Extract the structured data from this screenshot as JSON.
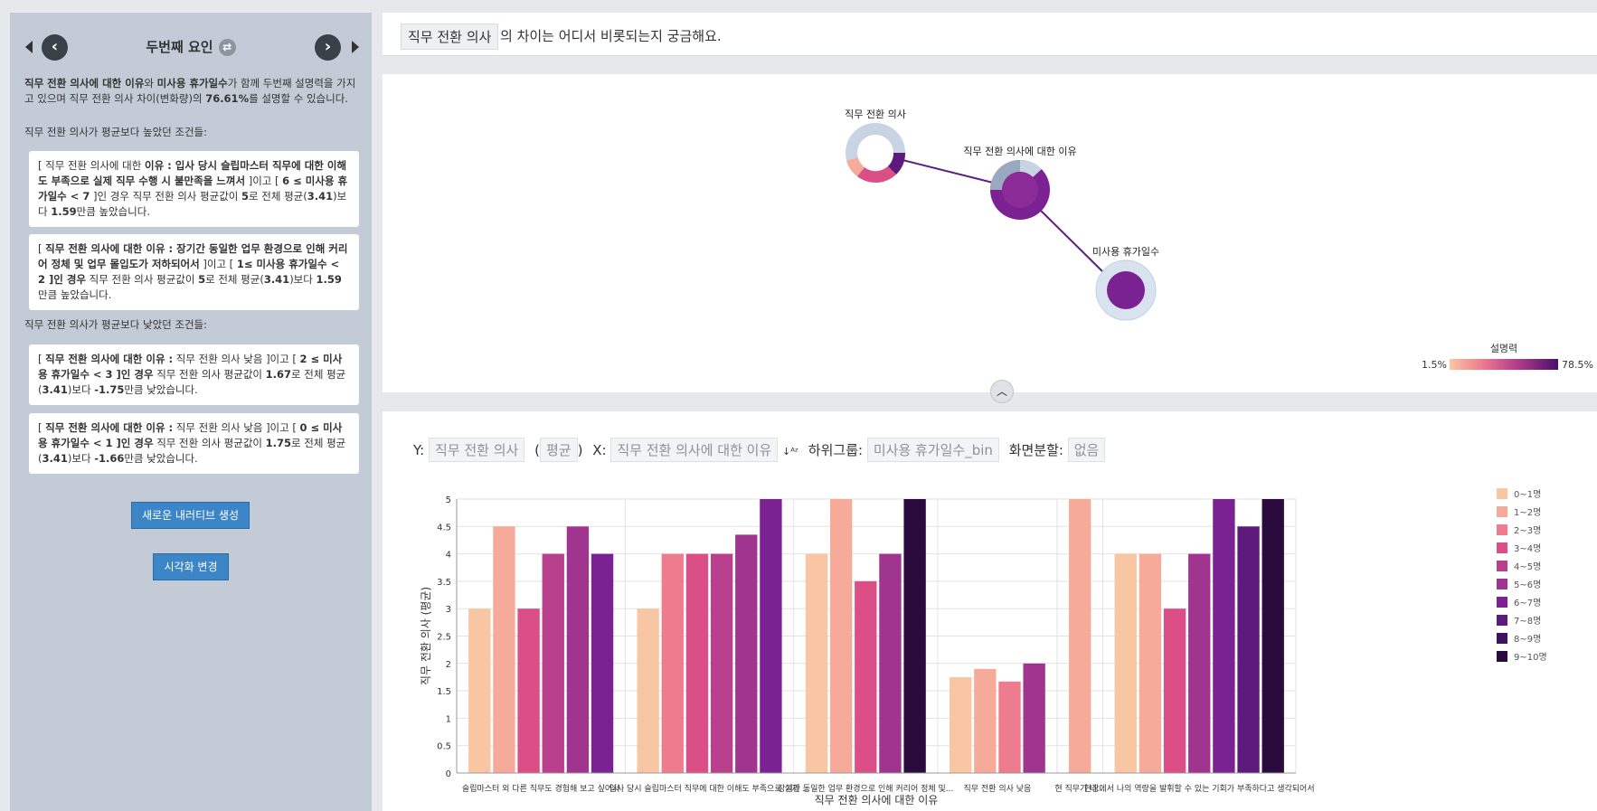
{
  "left_panel": {
    "title": "두번째 요인",
    "summary": {
      "b1": "직무 전환 의사에 대한 이유",
      "t1": "와 ",
      "b2": "미사용 휴가일수",
      "t2": "가 함께 두번째 설명력을 가지고 있으며 직무 전환 의사 차이(변화량)의 ",
      "b3": "76.61%",
      "t3": "를 설명할 수 있습니다."
    },
    "high_heading": "직무 전환 의사가 평균보다 높았던 조건들:",
    "low_heading": "직무 전환 의사가 평균보다 낮았던 조건들:",
    "cards": [
      {
        "a": "[ 직무 전환 의사에 대한 ",
        "b": "이유 : 입사 당시 슬립마스터 직무에 대한 이해도 부족으로 실제 직무 수행 시 불만족을 느껴서",
        "c": " ]이고 [ ",
        "d": "6 ≤ 미사용 휴가일수 < 7",
        "e": " ]인 경우 직무 전환 의사 평균값이 ",
        "f": "5",
        "g": "로 전체 평균(",
        "h": "3.41",
        "i": ")보다 ",
        "j": "1.59",
        "k": "만큼 높았습니다."
      },
      {
        "a": "[ ",
        "b": "직무 전환 의사에 대한 이유 : 장기간 동일한 업무 환경으로 인해 커리어 정체 및 업무 몰입도가 저하되어서",
        "c": " ]이고 [ ",
        "d": "1≤ 미사용 휴가일수 < 2 ]인 경우",
        "e": " 직무 전환 의사 평균값이 ",
        "f": "5",
        "g": "로 전체 평균(",
        "h": "3.41",
        "i": ")보다 ",
        "j": "1.59",
        "k": "만큼 높았습니다."
      },
      {
        "a": "[ ",
        "b": "직무 전환 의사에 대한 이유 :",
        "c": " 직무 전환 의사 낮음 ]이고 [ ",
        "d": "2 ≤ 미사용 휴가일수 < 3 ]인 경우",
        "e": " 직무 전환 의사 평균값이 ",
        "f": "1.67",
        "g": "로 전체 평균(",
        "h": "3.41",
        "i": ")보다 ",
        "j": "-1.75",
        "k": "만큼 낮았습니다."
      },
      {
        "a": "[ ",
        "b": "직무 전환 의사에 대한 이유 :",
        "c": " 직무 전환 의사 낮음 ]이고 [ ",
        "d": "0 ≤ 미사용 휴가일수 < 1 ]인 경우",
        "e": " 직무 전환 의사 평균값이 ",
        "f": "1.75",
        "g": "로 전체 평균(",
        "h": "3.41",
        "i": ")보다 ",
        "j": "-1.66",
        "k": "만큼 낮았습니다."
      }
    ],
    "btn_new": "새로운 내러티브 생성",
    "btn_vis": "시각화 변경"
  },
  "question": {
    "chip": "직무 전환 의사",
    "text": "의 차이는 어디서 비롯되는지 궁금해요."
  },
  "graph": {
    "nodes": [
      "직무 전환 의사",
      "직무 전환 의사에 대한 이유",
      "미사용 휴가일수"
    ],
    "legend_title": "설명력",
    "legend_min": "1.5%",
    "legend_max": "78.5%"
  },
  "controls": {
    "y_label": "Y:",
    "y_value": "직무 전환 의사",
    "agg": "평균",
    "x_label": "X:",
    "x_value": "직무 전환 의사에 대한 이유",
    "sort_icon": "sort-az-icon",
    "sub_label": "하위그룹:",
    "sub_value": "미사용 휴가일수_bin",
    "split_label": "화면분할:",
    "split_value": "없음"
  },
  "colors": {
    "accent": "#3c85c6",
    "panel": "#c3ccd6",
    "graph_edge": "#5c1f80"
  },
  "chart_data": {
    "type": "bar",
    "xlabel": "직무 전환 의사에 대한 이유",
    "ylabel": "직무 전환 의사 (평균)",
    "ylim": [
      0,
      5
    ],
    "yticks": [
      "0",
      "0.5",
      "1",
      "1.5",
      "2",
      "2.5",
      "3",
      "3.5",
      "4",
      "4.5",
      "5"
    ],
    "categories": [
      "슬립마스터 외 다른 직무도 경험해 보고 싶어서",
      "입사 당시 슬립마스터 직무에 대한 이해도 부족으로 실제 ...",
      "장기간 동일한 업무 환경으로 인해 커리어 정체 및...",
      "직무 전환 의사 낮음",
      "현 직무가 나...",
      "현장에서 나의 역량을 발휘할 수 있는 기회가 부족하다고 생각되어서"
    ],
    "series": [
      {
        "name": "0~1명",
        "color": "#f9c6a3"
      },
      {
        "name": "1~2명",
        "color": "#f5aa9a"
      },
      {
        "name": "2~3명",
        "color": "#ee7c8e"
      },
      {
        "name": "3~4명",
        "color": "#dc4f86"
      },
      {
        "name": "4~5명",
        "color": "#b83f8c"
      },
      {
        "name": "5~6명",
        "color": "#a0358f"
      },
      {
        "name": "6~7명",
        "color": "#7b2293"
      },
      {
        "name": "7~8명",
        "color": "#5c1a7a"
      },
      {
        "name": "8~9명",
        "color": "#3d1260"
      },
      {
        "name": "9~10명",
        "color": "#2b0a3d"
      }
    ],
    "groups": [
      [
        {
          "s": 0,
          "v": 3
        },
        {
          "s": 1,
          "v": 4.5
        },
        {
          "s": 3,
          "v": 3
        },
        {
          "s": 4,
          "v": 4
        },
        {
          "s": 5,
          "v": 4.5
        },
        {
          "s": 6,
          "v": 4
        }
      ],
      [
        {
          "s": 0,
          "v": 3
        },
        {
          "s": 2,
          "v": 4
        },
        {
          "s": 3,
          "v": 4
        },
        {
          "s": 4,
          "v": 4
        },
        {
          "s": 5,
          "v": 4.35
        },
        {
          "s": 6,
          "v": 5
        }
      ],
      [
        {
          "s": 0,
          "v": 4
        },
        {
          "s": 1,
          "v": 5
        },
        {
          "s": 3,
          "v": 3.5
        },
        {
          "s": 5,
          "v": 4
        },
        {
          "s": 9,
          "v": 5
        }
      ],
      [
        {
          "s": 0,
          "v": 1.75
        },
        {
          "s": 1,
          "v": 1.9
        },
        {
          "s": 2,
          "v": 1.67
        },
        {
          "s": 5,
          "v": 2
        }
      ],
      [
        {
          "s": 1,
          "v": 5
        }
      ],
      [
        {
          "s": 0,
          "v": 4
        },
        {
          "s": 1,
          "v": 4
        },
        {
          "s": 3,
          "v": 3
        },
        {
          "s": 5,
          "v": 4
        },
        {
          "s": 6,
          "v": 5
        },
        {
          "s": 7,
          "v": 4.5
        },
        {
          "s": 9,
          "v": 5
        }
      ]
    ]
  }
}
